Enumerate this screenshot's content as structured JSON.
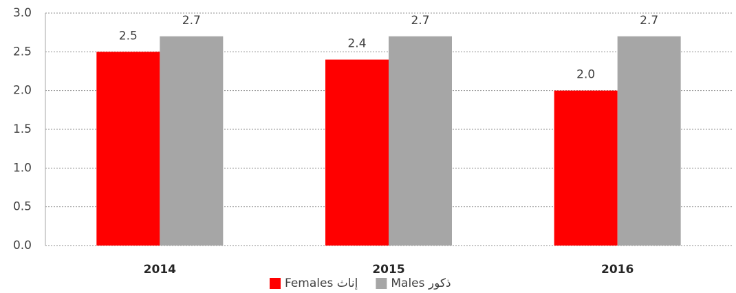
{
  "chart_data": {
    "type": "bar",
    "categories": [
      "2014",
      "2015",
      "2016"
    ],
    "series": [
      {
        "name": "Females إناث",
        "color": "#ff0000",
        "values": [
          2.5,
          2.4,
          2
        ],
        "value_labels": [
          "2.5",
          "2.4",
          "2.0"
        ]
      },
      {
        "name": "Males ذكور",
        "color": "#a6a6a6",
        "values": [
          2.7,
          2.7,
          2.7
        ],
        "value_labels": [
          "2.7",
          "2.7",
          "2.7"
        ]
      }
    ],
    "ylim": [
      0,
      3
    ],
    "yticks": [
      {
        "value": 0,
        "label": "0.0"
      },
      0.5,
      {
        "value": 1,
        "label": "1.0"
      },
      1.5,
      {
        "value": 2,
        "label": "2.0"
      },
      2.5,
      {
        "value": 3,
        "label": "3.0"
      }
    ],
    "grid": true,
    "legend": "bottom"
  }
}
